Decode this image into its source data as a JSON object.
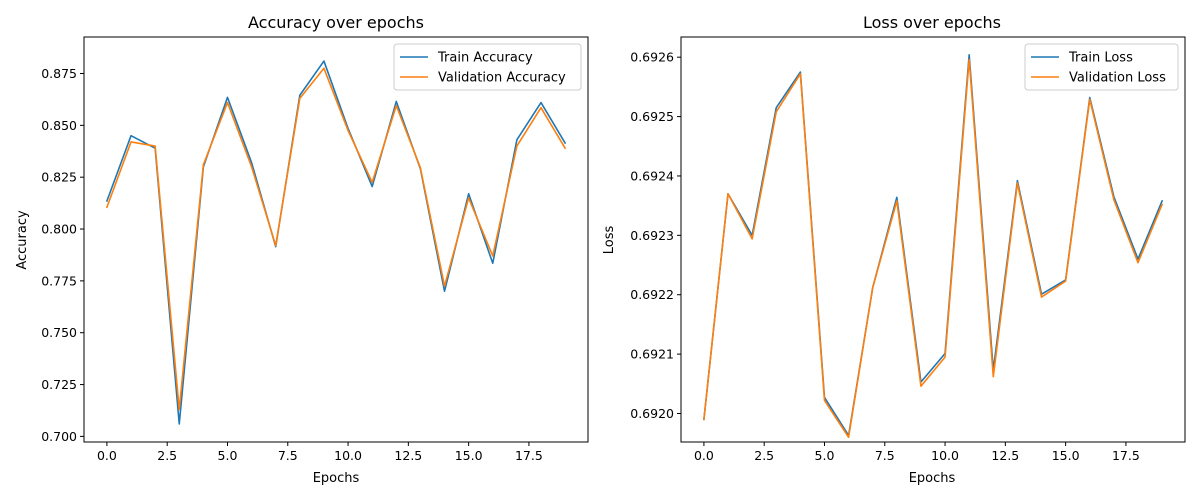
{
  "chart_data": [
    {
      "type": "line",
      "title": "Accuracy over epochs",
      "xlabel": "Epochs",
      "ylabel": "Accuracy",
      "xlim": [
        -0.95,
        19.95
      ],
      "ylim": [
        0.6973,
        0.8926
      ],
      "xticks": [
        0.0,
        2.5,
        5.0,
        7.5,
        10.0,
        12.5,
        15.0,
        17.5
      ],
      "xtick_labels": [
        "0.0",
        "2.5",
        "5.0",
        "7.5",
        "10.0",
        "12.5",
        "15.0",
        "17.5"
      ],
      "yticks": [
        0.7,
        0.725,
        0.75,
        0.775,
        0.8,
        0.825,
        0.85,
        0.875
      ],
      "ytick_labels": [
        "0.700",
        "0.725",
        "0.750",
        "0.775",
        "0.800",
        "0.825",
        "0.850",
        "0.875"
      ],
      "legend_position": "top-right",
      "grid": false,
      "x": [
        0,
        1,
        2,
        3,
        4,
        5,
        6,
        7,
        8,
        9,
        10,
        11,
        12,
        13,
        14,
        15,
        16,
        17,
        18,
        19
      ],
      "series": [
        {
          "name": "Train Accuracy",
          "color": "#1f77b4",
          "values": [
            0.8135,
            0.845,
            0.839,
            0.706,
            0.83,
            0.8635,
            0.832,
            0.7915,
            0.8645,
            0.881,
            0.8485,
            0.8205,
            0.8615,
            0.829,
            0.77,
            0.817,
            0.7835,
            0.843,
            0.861,
            0.8415
          ]
        },
        {
          "name": "Validation Accuracy",
          "color": "#ff7f0e",
          "values": [
            0.8105,
            0.842,
            0.84,
            0.713,
            0.831,
            0.861,
            0.83,
            0.792,
            0.863,
            0.8775,
            0.8475,
            0.8225,
            0.8595,
            0.8295,
            0.7725,
            0.815,
            0.787,
            0.84,
            0.8585,
            0.839
          ]
        }
      ]
    },
    {
      "type": "line",
      "title": "Loss over epochs",
      "xlabel": "Epochs",
      "ylabel": "Loss",
      "xlim": [
        -0.95,
        19.95
      ],
      "ylim": [
        0.691952,
        0.692634
      ],
      "xticks": [
        0.0,
        2.5,
        5.0,
        7.5,
        10.0,
        12.5,
        15.0,
        17.5
      ],
      "xtick_labels": [
        "0.0",
        "2.5",
        "5.0",
        "7.5",
        "10.0",
        "12.5",
        "15.0",
        "17.5"
      ],
      "yticks": [
        0.692,
        0.6921,
        0.6922,
        0.6923,
        0.6924,
        0.6925,
        0.6926
      ],
      "ytick_labels": [
        "0.6920",
        "0.6921",
        "0.6922",
        "0.6923",
        "0.6924",
        "0.6925",
        "0.6926"
      ],
      "legend_position": "top-right",
      "grid": false,
      "x": [
        0,
        1,
        2,
        3,
        4,
        5,
        6,
        7,
        8,
        9,
        10,
        11,
        12,
        13,
        14,
        15,
        16,
        17,
        18,
        19
      ],
      "series": [
        {
          "name": "Train Loss",
          "color": "#1f77b4",
          "values": [
            0.69199,
            0.69237,
            0.6923,
            0.692515,
            0.692575,
            0.692027,
            0.691963,
            0.692212,
            0.692364,
            0.692053,
            0.692101,
            0.692604,
            0.692073,
            0.692392,
            0.692201,
            0.692225,
            0.692532,
            0.692365,
            0.69226,
            0.692358
          ]
        },
        {
          "name": "Validation Loss",
          "color": "#ff7f0e",
          "values": [
            0.69199,
            0.69237,
            0.692294,
            0.692508,
            0.692572,
            0.692022,
            0.69196,
            0.692212,
            0.692358,
            0.692046,
            0.692095,
            0.692596,
            0.692062,
            0.692388,
            0.692196,
            0.692223,
            0.692529,
            0.69236,
            0.692254,
            0.692352
          ]
        }
      ]
    }
  ]
}
